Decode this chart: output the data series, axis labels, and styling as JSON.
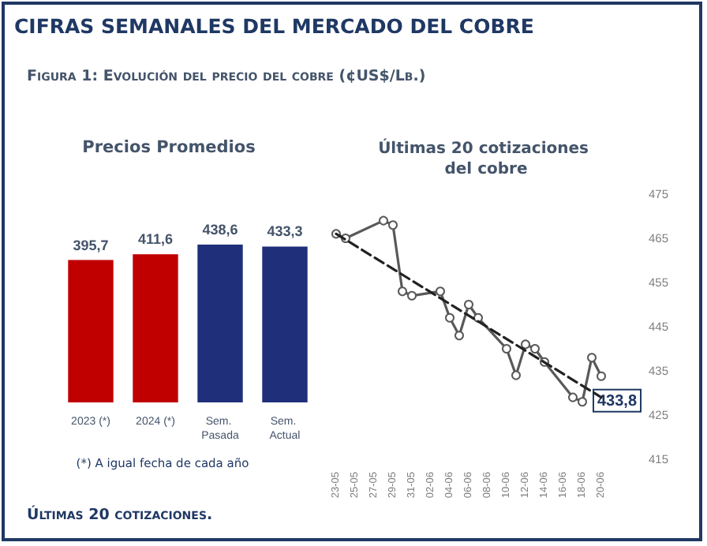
{
  "chart_data": [
    {
      "type": "bar",
      "title": "Precios Promedios",
      "categories": [
        "2023 (*)",
        "2024 (*)",
        "Sem. Pasada",
        "Sem. Actual"
      ],
      "values": [
        395.7,
        411.6,
        438.6,
        433.3
      ],
      "colors": [
        "#c00000",
        "#c00000",
        "#1f2f7a",
        "#1f2f7a"
      ],
      "value_labels": [
        "395,7",
        "411,6",
        "438,6",
        "433,3"
      ],
      "tick_labels": "x",
      "grid": false,
      "annotations": [
        "CIFRAS SEMANALES DEL MERCADO DEL COBRE",
        "Figura 1: Evolución del precio del cobre (¢US$/Lb.)",
        "(*) A igual fecha de cada año",
        "Últimas 20 cotizaciones."
      ]
    },
    {
      "type": "line",
      "title": "Últimas 20 cotizaciones del cobre",
      "x": [
        "--05-23",
        "--05-24",
        "--05-28",
        "--05-29",
        "--05-30",
        "--05-31",
        "--06-03",
        "--06-04",
        "--06-05",
        "--06-06",
        "--06-07",
        "--06-10",
        "--06-11",
        "--06-12",
        "--06-13",
        "--06-14",
        "--06-17",
        "--06-18",
        "--06-19",
        "--06-20"
      ],
      "series": [
        {
          "color": "#595959",
          "values": [
            466,
            465,
            469,
            468,
            453,
            452,
            453,
            447,
            443,
            450,
            447,
            440,
            434,
            441,
            440,
            437,
            429,
            428,
            438,
            433.8
          ],
          "value_labels": [
            null,
            null,
            null,
            null,
            null,
            null,
            null,
            null,
            null,
            null,
            null,
            null,
            null,
            null,
            null,
            null,
            null,
            null,
            null,
            "433,8"
          ]
        },
        {
          "type": "line",
          "x": [
            "--05-23",
            "--06-20"
          ],
          "values": [
            466,
            429
          ],
          "color": "#222222",
          "line_style": "dashed",
          "marker": "none"
        }
      ],
      "marker": "circle",
      "line_style": "solid",
      "grid": false,
      "xlim": [
        "--05-23",
        "--06-20"
      ],
      "xticks": [
        {
          "value": "--05-23",
          "label": "23-05"
        },
        {
          "value": "--05-25",
          "label": "25-05"
        },
        {
          "value": "--05-27",
          "label": "27-05"
        },
        {
          "value": "--05-29",
          "label": "29-05"
        },
        {
          "value": "--05-31",
          "label": "31-05"
        },
        {
          "value": "--06-02",
          "label": "02-06"
        },
        {
          "value": "--06-04",
          "label": "04-06"
        },
        {
          "value": "--06-06",
          "label": "06-06"
        },
        {
          "value": "--06-08",
          "label": "08-06"
        },
        {
          "value": "--06-10",
          "label": "10-06"
        },
        {
          "value": "--06-12",
          "label": "12-06"
        },
        {
          "value": "--06-14",
          "label": "14-06"
        },
        {
          "value": "--06-16",
          "label": "16-06"
        },
        {
          "value": "--06-18",
          "label": "18-06"
        },
        {
          "value": "--06-20",
          "label": "20-06"
        }
      ],
      "ylim": [
        415,
        475
      ],
      "yticks": [
        415,
        425,
        435,
        445,
        455,
        465,
        475
      ]
    }
  ]
}
